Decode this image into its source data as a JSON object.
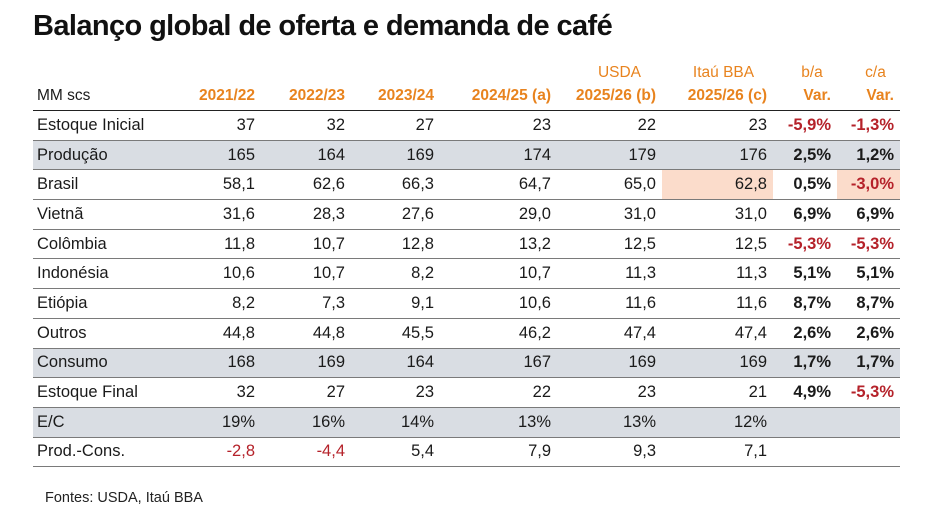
{
  "title": "Balanço global de oferta e demanda de café",
  "header": {
    "top": [
      "",
      "",
      "",
      "",
      "",
      "USDA",
      "Itaú BBA",
      "b/a",
      "c/a"
    ],
    "bottom": [
      "MM scs",
      "2021/22",
      "2022/23",
      "2023/24",
      "2024/25 (a)",
      "2025/26 (b)",
      "2025/26 (c)",
      "Var.",
      "Var."
    ]
  },
  "rows": [
    {
      "label": "Estoque Inicial",
      "cells": [
        "37",
        "32",
        "27",
        "23",
        "22",
        "23"
      ],
      "b_a": "-5,9%",
      "c_a": "-1,3%"
    },
    {
      "label": "Produção",
      "cells": [
        "165",
        "164",
        "169",
        "174",
        "179",
        "176"
      ],
      "b_a": "2,5%",
      "c_a": "1,2%"
    },
    {
      "label": "Brasil",
      "cells": [
        "58,1",
        "62,6",
        "66,3",
        "64,7",
        "65,0",
        "62,8"
      ],
      "b_a": "0,5%",
      "c_a": "-3,0%"
    },
    {
      "label": "Vietnã",
      "cells": [
        "31,6",
        "28,3",
        "27,6",
        "29,0",
        "31,0",
        "31,0"
      ],
      "b_a": "6,9%",
      "c_a": "6,9%"
    },
    {
      "label": "Colômbia",
      "cells": [
        "11,8",
        "10,7",
        "12,8",
        "13,2",
        "12,5",
        "12,5"
      ],
      "b_a": "-5,3%",
      "c_a": "-5,3%"
    },
    {
      "label": "Indonésia",
      "cells": [
        "10,6",
        "10,7",
        "8,2",
        "10,7",
        "11,3",
        "11,3"
      ],
      "b_a": "5,1%",
      "c_a": "5,1%"
    },
    {
      "label": "Etiópia",
      "cells": [
        "8,2",
        "7,3",
        "9,1",
        "10,6",
        "11,6",
        "11,6"
      ],
      "b_a": "8,7%",
      "c_a": "8,7%"
    },
    {
      "label": "Outros",
      "cells": [
        "44,8",
        "44,8",
        "45,5",
        "46,2",
        "47,4",
        "47,4"
      ],
      "b_a": "2,6%",
      "c_a": "2,6%"
    },
    {
      "label": "Consumo",
      "cells": [
        "168",
        "169",
        "164",
        "167",
        "169",
        "169"
      ],
      "b_a": "1,7%",
      "c_a": "1,7%"
    },
    {
      "label": "Estoque Final",
      "cells": [
        "32",
        "27",
        "23",
        "22",
        "23",
        "21"
      ],
      "b_a": "4,9%",
      "c_a": "-5,3%"
    },
    {
      "label": "E/C",
      "cells": [
        "19%",
        "16%",
        "14%",
        "13%",
        "13%",
        "12%"
      ],
      "b_a": "",
      "c_a": ""
    },
    {
      "label": "Prod.-Cons.",
      "cells": [
        "-2,8",
        "-4,4",
        "5,4",
        "7,9",
        "9,3",
        "7,1"
      ],
      "b_a": "",
      "c_a": ""
    }
  ],
  "source": "Fontes: USDA, Itaú BBA",
  "colors": {
    "accent": "#e8831e",
    "negative": "#b5222a",
    "shade": "#d9dde3",
    "highlight": "#fbdccb"
  },
  "chart_data": {
    "type": "table",
    "title": "Balanço global de oferta e demanda de café",
    "unit": "MM scs",
    "columns": [
      "2021/22",
      "2022/23",
      "2023/24",
      "2024/25 (a)",
      "2025/26 (b)",
      "2025/26 (c)",
      "b/a Var.",
      "c/a Var."
    ],
    "column_groups": {
      "2025/26 (b)": "USDA",
      "2025/26 (c)": "Itaú BBA"
    },
    "series": [
      {
        "name": "Estoque Inicial",
        "values": [
          37,
          32,
          27,
          23,
          22,
          23
        ],
        "b_a_var_pct": -5.9,
        "c_a_var_pct": -1.3
      },
      {
        "name": "Produção",
        "values": [
          165,
          164,
          169,
          174,
          179,
          176
        ],
        "b_a_var_pct": 2.5,
        "c_a_var_pct": 1.2
      },
      {
        "name": "Brasil",
        "values": [
          58.1,
          62.6,
          66.3,
          64.7,
          65.0,
          62.8
        ],
        "b_a_var_pct": 0.5,
        "c_a_var_pct": -3.0
      },
      {
        "name": "Vietnã",
        "values": [
          31.6,
          28.3,
          27.6,
          29.0,
          31.0,
          31.0
        ],
        "b_a_var_pct": 6.9,
        "c_a_var_pct": 6.9
      },
      {
        "name": "Colômbia",
        "values": [
          11.8,
          10.7,
          12.8,
          13.2,
          12.5,
          12.5
        ],
        "b_a_var_pct": -5.3,
        "c_a_var_pct": -5.3
      },
      {
        "name": "Indonésia",
        "values": [
          10.6,
          10.7,
          8.2,
          10.7,
          11.3,
          11.3
        ],
        "b_a_var_pct": 5.1,
        "c_a_var_pct": 5.1
      },
      {
        "name": "Etiópia",
        "values": [
          8.2,
          7.3,
          9.1,
          10.6,
          11.6,
          11.6
        ],
        "b_a_var_pct": 8.7,
        "c_a_var_pct": 8.7
      },
      {
        "name": "Outros",
        "values": [
          44.8,
          44.8,
          45.5,
          46.2,
          47.4,
          47.4
        ],
        "b_a_var_pct": 2.6,
        "c_a_var_pct": 2.6
      },
      {
        "name": "Consumo",
        "values": [
          168,
          169,
          164,
          167,
          169,
          169
        ],
        "b_a_var_pct": 1.7,
        "c_a_var_pct": 1.7
      },
      {
        "name": "Estoque Final",
        "values": [
          32,
          27,
          23,
          22,
          23,
          21
        ],
        "b_a_var_pct": 4.9,
        "c_a_var_pct": -5.3
      },
      {
        "name": "E/C",
        "values_pct": [
          19,
          16,
          14,
          13,
          13,
          12
        ]
      },
      {
        "name": "Prod.-Cons.",
        "values": [
          -2.8,
          -4.4,
          5.4,
          7.9,
          9.3,
          7.1
        ]
      }
    ]
  }
}
